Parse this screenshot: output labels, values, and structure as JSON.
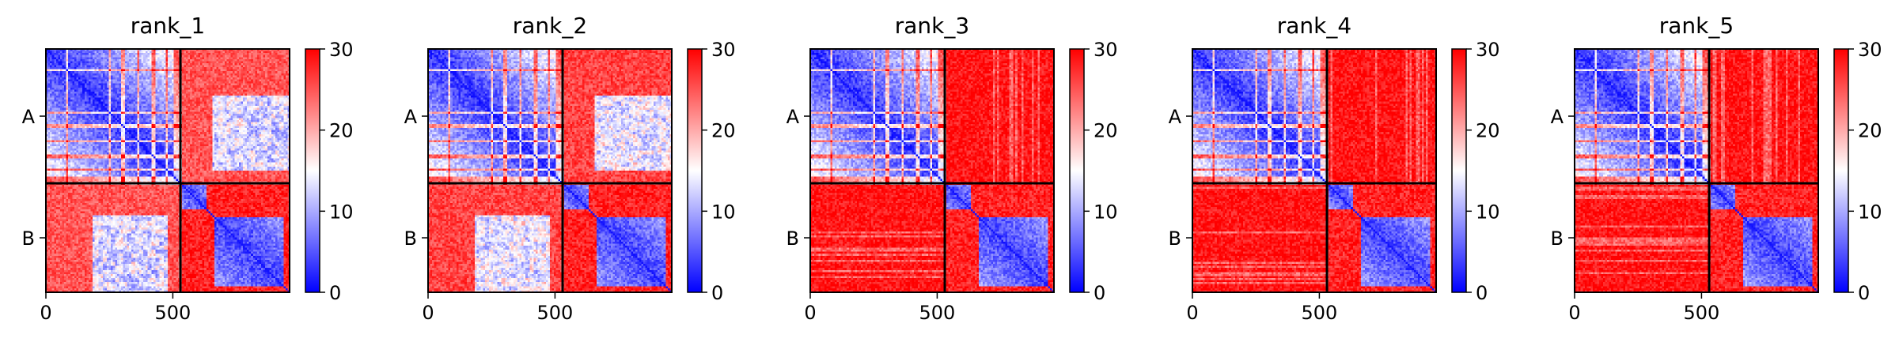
{
  "chart_data": {
    "type": "heatmap",
    "description_free": true,
    "matrix_size": 960,
    "chain_boundary": 530,
    "chains": [
      "A",
      "B"
    ],
    "xticks": [
      0,
      500
    ],
    "colorbar": {
      "min": 0,
      "max": 30,
      "ticks": [
        0,
        10,
        20,
        30
      ],
      "colors": [
        "#0000ff",
        "#ffffff",
        "#ff0000"
      ]
    },
    "panels": [
      {
        "title": "rank_1",
        "offdiag_mean": 25,
        "offdiag_light_patches": true
      },
      {
        "title": "rank_2",
        "offdiag_mean": 26,
        "offdiag_light_patches": true
      },
      {
        "title": "rank_3",
        "offdiag_mean": 29,
        "offdiag_light_patches": false
      },
      {
        "title": "rank_4",
        "offdiag_mean": 29,
        "offdiag_light_patches": false
      },
      {
        "title": "rank_5",
        "offdiag_mean": 29,
        "offdiag_light_patches": false
      }
    ]
  }
}
